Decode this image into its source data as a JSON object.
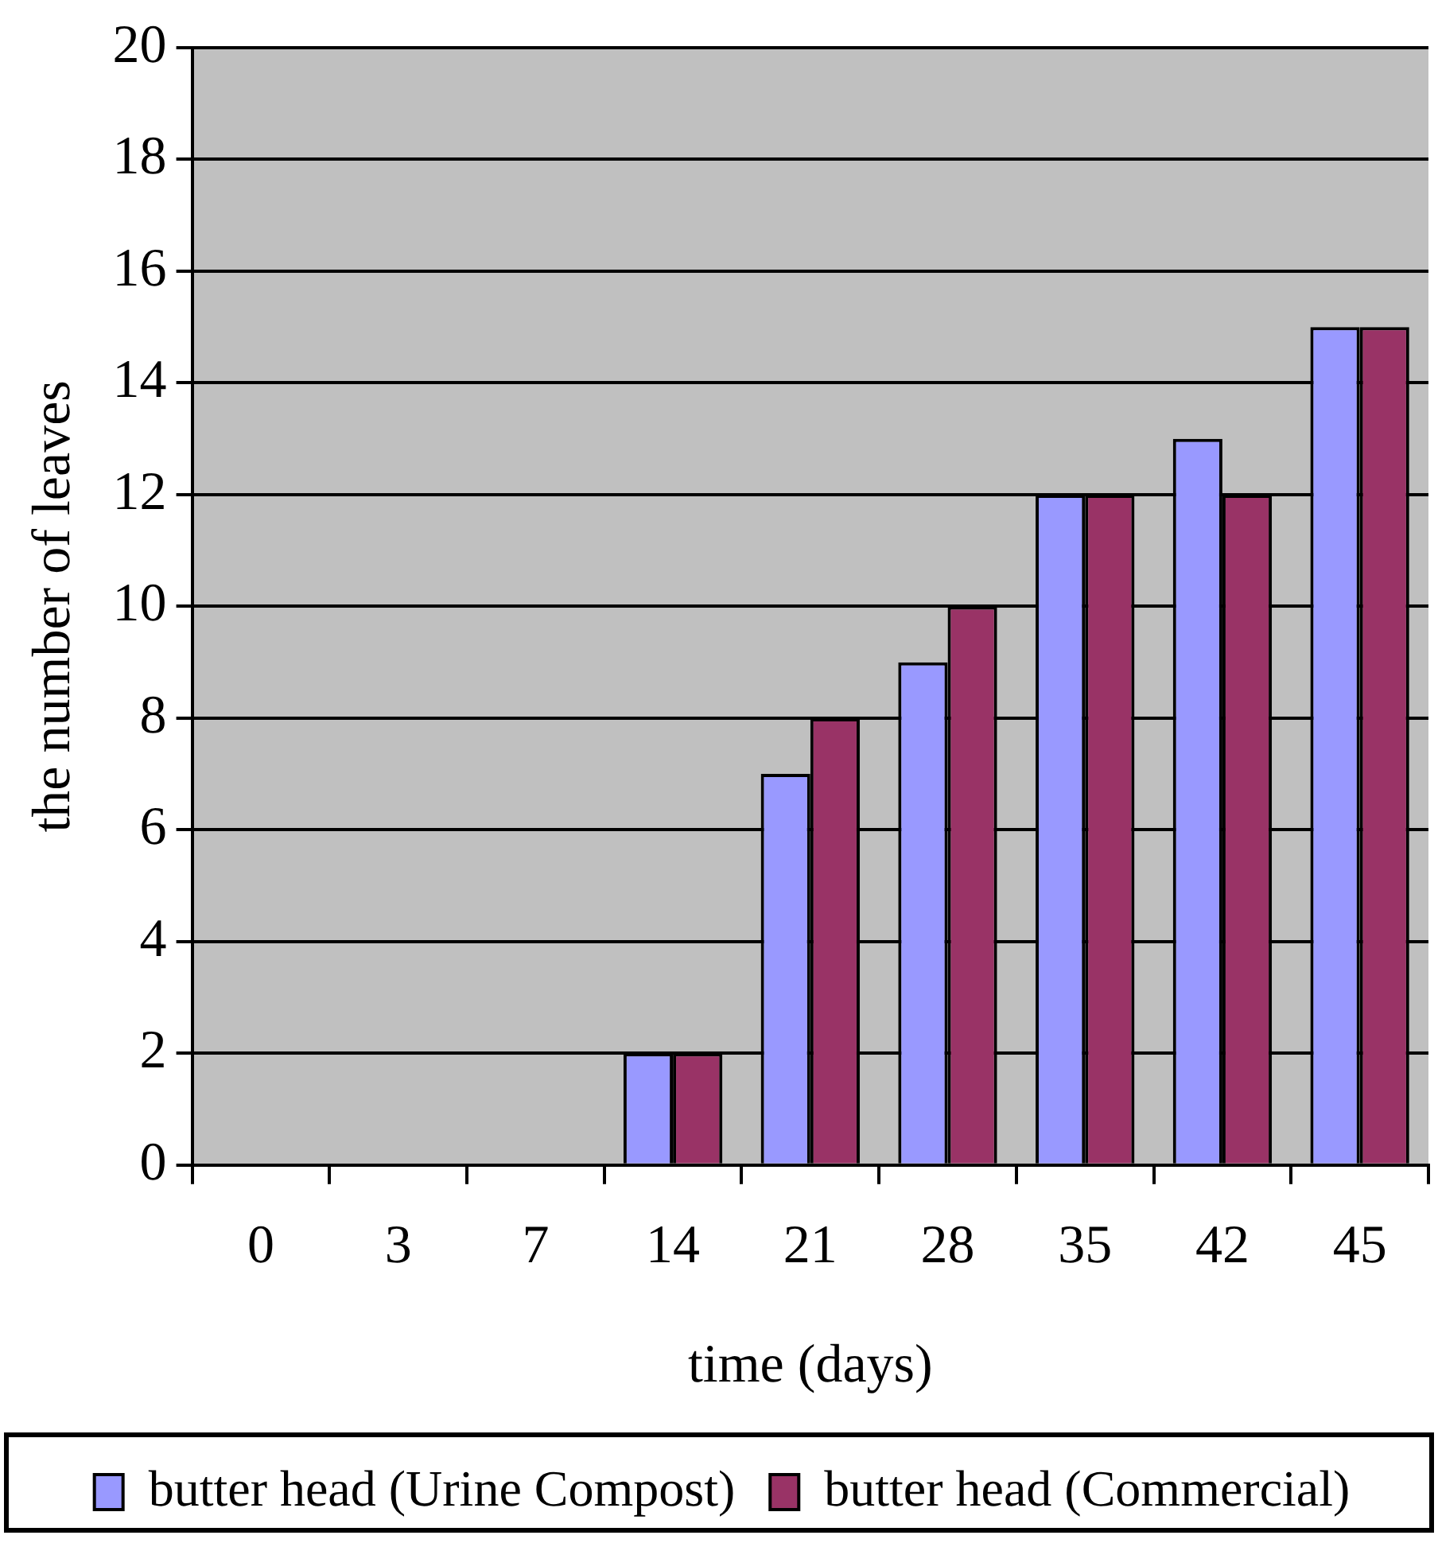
{
  "chart_data": {
    "type": "bar",
    "xlabel": "time (days)",
    "ylabel": "the number of leaves",
    "categories": [
      "0",
      "3",
      "7",
      "14",
      "21",
      "28",
      "35",
      "42",
      "45"
    ],
    "series": [
      {
        "name": "butter head (Urine Compost)",
        "color": "#9999ff",
        "values": [
          0,
          0,
          0,
          2,
          7,
          9,
          12,
          13,
          15
        ]
      },
      {
        "name": "butter head (Commercial)",
        "color": "#993366",
        "values": [
          0,
          0,
          0,
          2,
          8,
          10,
          12,
          12,
          15
        ]
      }
    ],
    "ylim": [
      0,
      20
    ],
    "yticks": [
      0,
      2,
      4,
      6,
      8,
      10,
      12,
      14,
      16,
      18,
      20
    ],
    "grid": "y",
    "legend": "bottom"
  }
}
